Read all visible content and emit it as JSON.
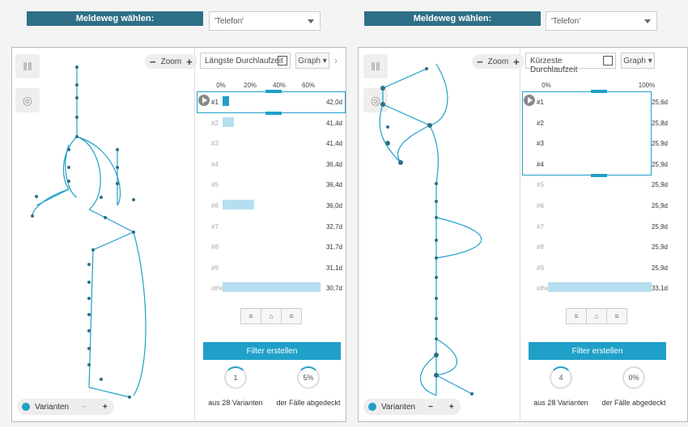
{
  "left": {
    "meldeweg_label": "Meldeweg wählen:",
    "select_value": "'Telefon'",
    "zoom_label": "Zoom",
    "sort_label": "Längste Durchlaufzeit",
    "graph_label": "Graph",
    "ticks": [
      "0%",
      "20%",
      "40%",
      "60%"
    ],
    "rows": [
      {
        "label": "#1",
        "duration": "42,0d",
        "share": 0.04
      },
      {
        "label": "#2",
        "duration": "41,4d",
        "share": 0.07
      },
      {
        "label": "#3",
        "duration": "41,4d",
        "share": 0
      },
      {
        "label": "#4",
        "duration": "36,4d",
        "share": 0
      },
      {
        "label": "#5",
        "duration": "36,4d",
        "share": 0
      },
      {
        "label": "#6",
        "duration": "36,0d",
        "share": 0.2
      },
      {
        "label": "#7",
        "duration": "32,7d",
        "share": 0
      },
      {
        "label": "#8",
        "duration": "31,7d",
        "share": 0
      },
      {
        "label": "#9",
        "duration": "31,1d",
        "share": 0
      },
      {
        "label": "others",
        "duration": "30,7d",
        "share": 0.62
      }
    ],
    "varianten_label": "Varianten",
    "filter_label": "Filter erstellen",
    "stat1_value": "1",
    "stat1_caption": "aus 28 Varianten",
    "stat2_value": "5%",
    "stat2_caption": "der Fälle abgedeckt"
  },
  "right": {
    "meldeweg_label": "Meldeweg wählen:",
    "select_value": "'Telefon'",
    "zoom_label": "Zoom",
    "sort_label": "Kürzeste Durchlaufzeit",
    "graph_label": "Graph",
    "ticks": [
      "0%",
      "100%"
    ],
    "rows": [
      {
        "label": "#1",
        "duration": "25,6d",
        "share": 0
      },
      {
        "label": "#2",
        "duration": "25,8d",
        "share": 0
      },
      {
        "label": "#3",
        "duration": "25,9d",
        "share": 0
      },
      {
        "label": "#4",
        "duration": "25,9d",
        "share": 0
      },
      {
        "label": "#5",
        "duration": "25,9d",
        "share": 0
      },
      {
        "label": "#6",
        "duration": "25,9d",
        "share": 0
      },
      {
        "label": "#7",
        "duration": "25,9d",
        "share": 0
      },
      {
        "label": "#8",
        "duration": "25,9d",
        "share": 0
      },
      {
        "label": "#9",
        "duration": "25,9d",
        "share": 0
      },
      {
        "label": "others",
        "duration": "33,1d",
        "share": 0.85
      }
    ],
    "varianten_label": "Varianten",
    "filter_label": "Filter erstellen",
    "stat1_value": "4",
    "stat1_caption": "aus 28 Varianten",
    "stat2_value": "0%",
    "stat2_caption": "der Fälle abgedeckt"
  },
  "colors": {
    "accent": "#1fa0c8",
    "header": "#2e6f87",
    "bar": "#b5dff0"
  }
}
